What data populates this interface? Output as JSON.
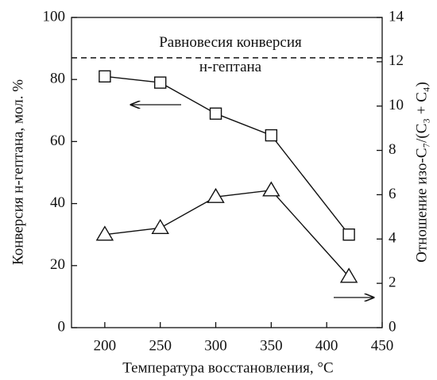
{
  "chart_data": {
    "type": "line",
    "xlabel": "Температура восстановления, °C",
    "ylabel": "Конверсия н-гептана, мол. %",
    "y2label": "Отношение изо-C₇/(C₃ + C₄)",
    "x": [
      200,
      250,
      300,
      350,
      420
    ],
    "xlim": [
      170,
      450
    ],
    "xticks": [
      200,
      250,
      300,
      350,
      400,
      450
    ],
    "ylim": [
      0,
      100
    ],
    "yticks": [
      0,
      20,
      40,
      60,
      80,
      100
    ],
    "y2lim": [
      0,
      14
    ],
    "y2ticks": [
      0,
      2,
      4,
      6,
      8,
      10,
      12,
      14
    ],
    "series": [
      {
        "color": "#111111",
        "marker": "square",
        "values": [
          81,
          79,
          69,
          62,
          30
        ]
      },
      {
        "color": "#111111",
        "marker": "triangle",
        "axis": "y2",
        "values": [
          4.2,
          4.5,
          5.9,
          6.2,
          2.3
        ]
      }
    ],
    "reference_line": {
      "value": 87,
      "label_1": "Равновесия конверсия",
      "label_2": "н-гептана"
    }
  }
}
